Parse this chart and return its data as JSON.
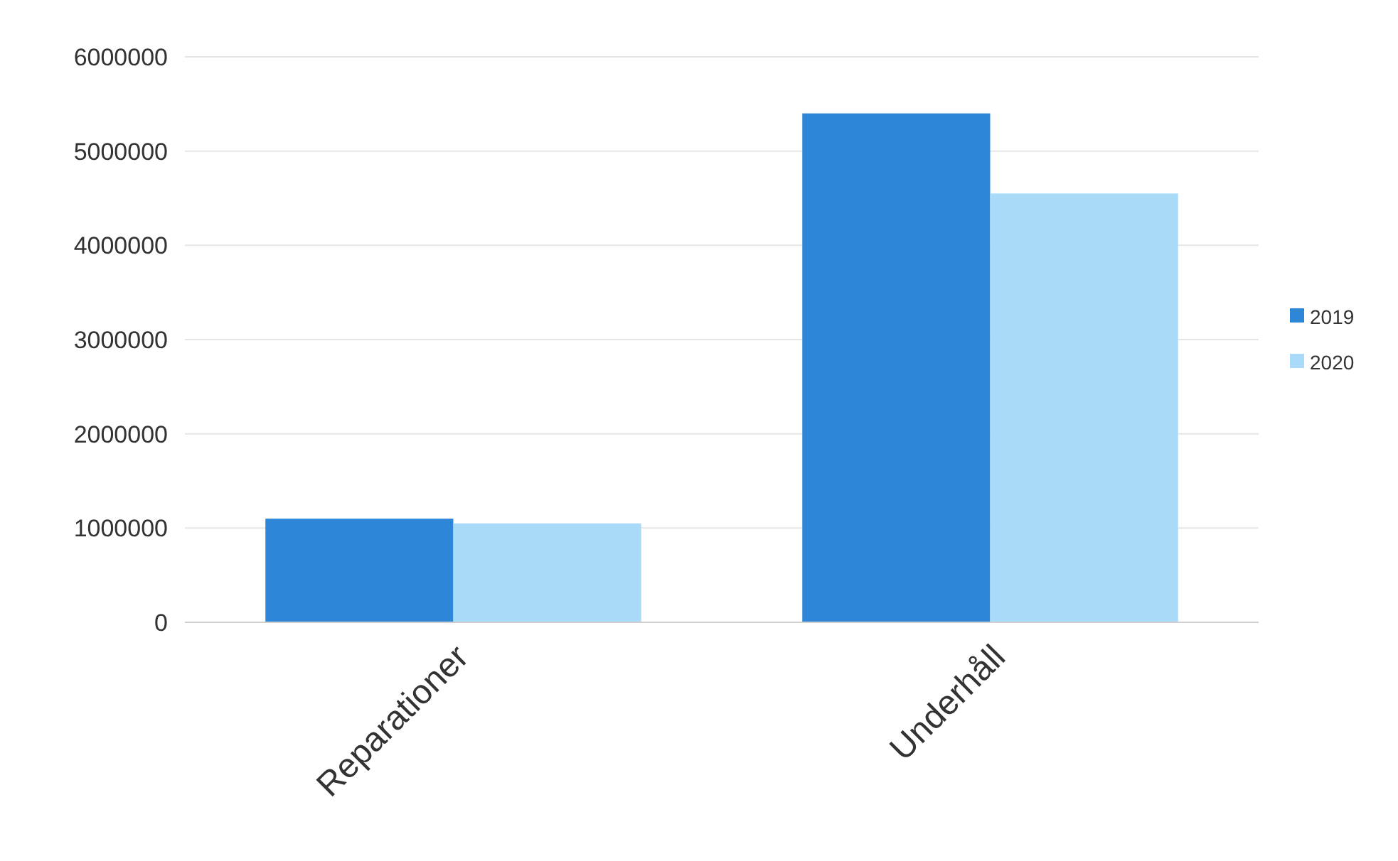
{
  "chart_data": {
    "type": "bar",
    "categories": [
      "Reparationer",
      "Underhåll"
    ],
    "series": [
      {
        "name": "2019",
        "color": "#2e86d9",
        "values": [
          1100000,
          5400000
        ]
      },
      {
        "name": "2020",
        "color": "#a9dbf8",
        "values": [
          1050000,
          4550000
        ]
      }
    ],
    "ylim": [
      0,
      6000000
    ],
    "yticks": [
      0,
      1000000,
      2000000,
      3000000,
      4000000,
      5000000,
      6000000
    ],
    "grid": "y",
    "legend": "right"
  }
}
